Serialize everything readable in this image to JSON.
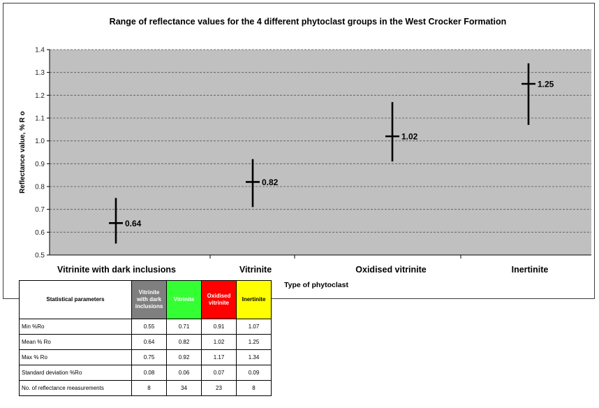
{
  "chart_data": {
    "type": "range",
    "title": "Range of reflectance values for the 4 different phytoclast groups in the West Crocker Formation",
    "ylabel": "Reflectance value, % R o",
    "xlabel": "Type of phytoclast",
    "ylim": [
      0.5,
      1.4
    ],
    "yticks": [
      "0.5",
      "0.6",
      "0.7",
      "0.8",
      "0.9",
      "1.0",
      "1.1",
      "1.2",
      "1.3",
      "1.4"
    ],
    "grid": true,
    "categories": [
      "Vitrinite with dark inclusions",
      "Vitrinite",
      "Oxidised vitrinite",
      "Inertinite"
    ],
    "min": [
      0.55,
      0.71,
      0.91,
      1.07
    ],
    "mean": [
      0.64,
      0.82,
      1.02,
      1.25
    ],
    "max": [
      0.75,
      0.92,
      1.17,
      1.34
    ],
    "mean_labels": [
      "0.64",
      "0.82",
      "1.02",
      "1.25"
    ]
  },
  "table": {
    "header": "Statistical parameters",
    "groups": [
      {
        "name": "Vitrinite with dark inclusions",
        "color": "#7f7f7f"
      },
      {
        "name": "Vitrinite",
        "color": "#33ff33"
      },
      {
        "name": "Oxidised vitrinite",
        "color": "#ff0000"
      },
      {
        "name": "Inertinite",
        "color": "#ffff00"
      }
    ],
    "rows": [
      {
        "label": "Min %Ro",
        "values": [
          "0.55",
          "0.71",
          "0.91",
          "1.07"
        ]
      },
      {
        "label": "Mean % Ro",
        "values": [
          "0.64",
          "0.82",
          "1.02",
          "1.25"
        ]
      },
      {
        "label": "Max % Ro",
        "values": [
          "0.75",
          "0.92",
          "1.17",
          "1.34"
        ]
      },
      {
        "label": "Standard deviation %Ro",
        "values": [
          "0.08",
          "0.06",
          "0.07",
          "0.09"
        ]
      },
      {
        "label": "No. of reflectance measurements",
        "values": [
          "8",
          "34",
          "23",
          "8"
        ]
      }
    ]
  },
  "colors": {
    "plot_area": "#c0c0c0",
    "gridline": "#555555",
    "marker": "#000000"
  }
}
